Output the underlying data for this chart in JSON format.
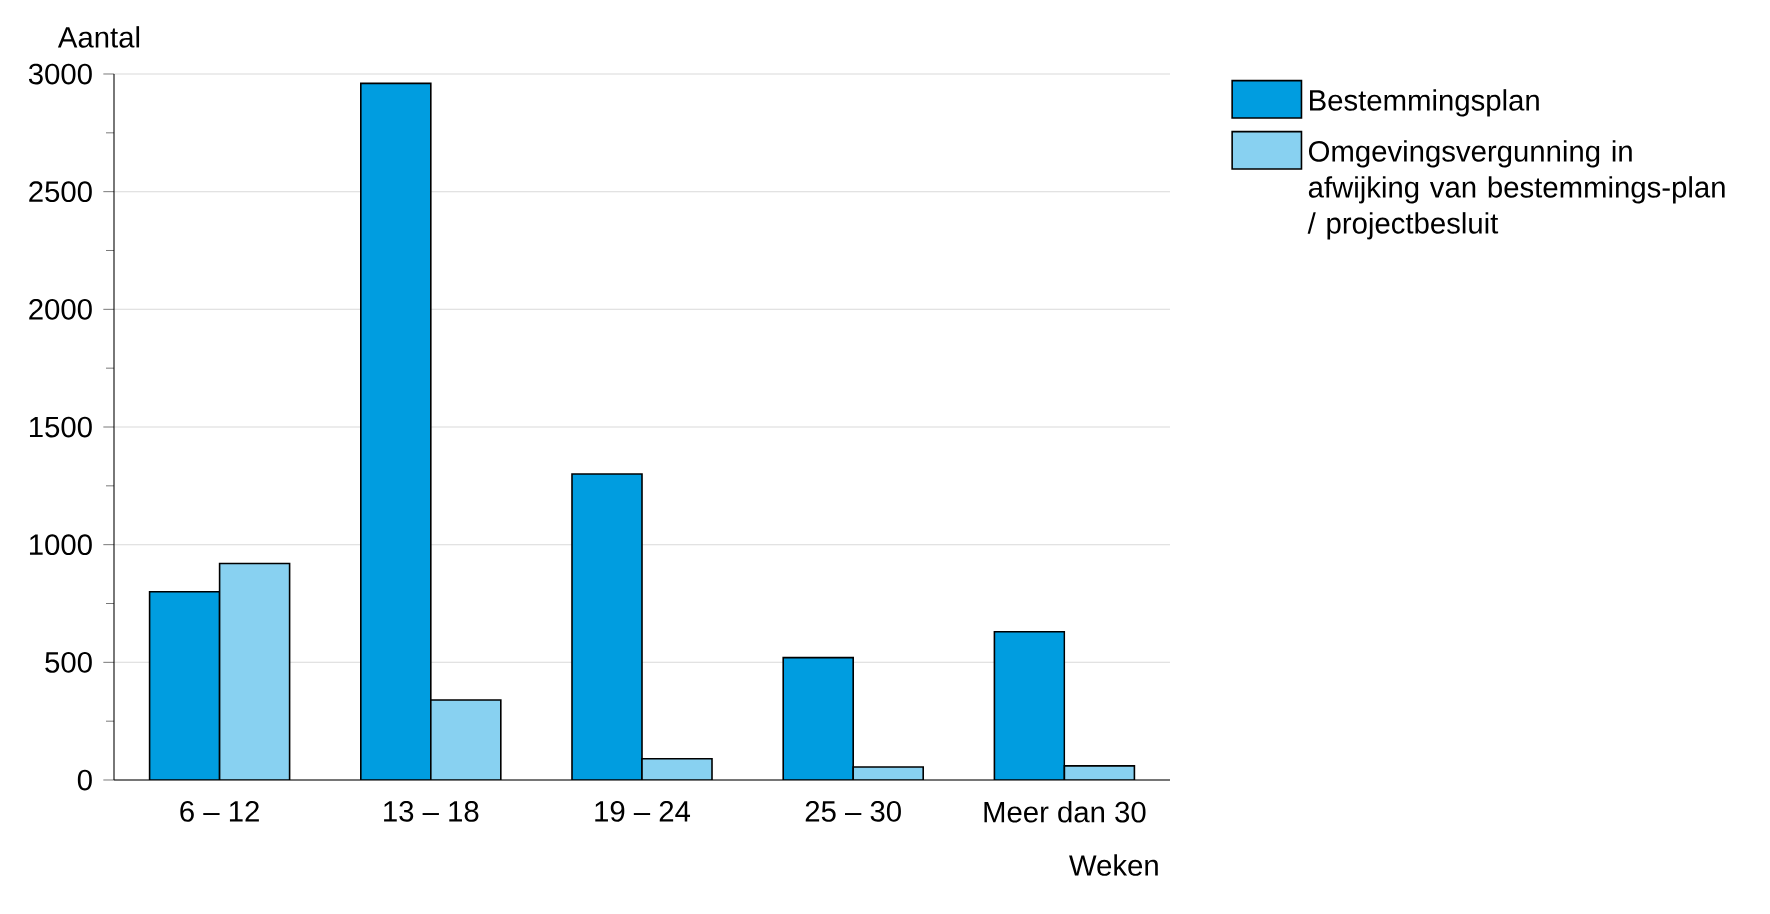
{
  "chart_data": {
    "type": "bar",
    "xlabel": "Weken",
    "ylabel": "Aantal",
    "categories": [
      "6 – 12",
      "13 – 18",
      "19 – 24",
      "25 – 30",
      "Meer dan 30"
    ],
    "series": [
      {
        "name": "Bestemmingsplan",
        "color": "#009de0",
        "values": [
          800,
          2960,
          1300,
          520,
          630
        ]
      },
      {
        "name": "Omgevingsvergunning in afwijking van bestemmings-plan / projectbesluit",
        "color": "#88d1f1",
        "values": [
          920,
          340,
          90,
          55,
          60
        ]
      }
    ],
    "ylim": [
      0,
      3000
    ],
    "yticks": [
      0,
      500,
      1000,
      1500,
      2000,
      2500,
      3000
    ],
    "grid": "y",
    "legend": "top right"
  }
}
